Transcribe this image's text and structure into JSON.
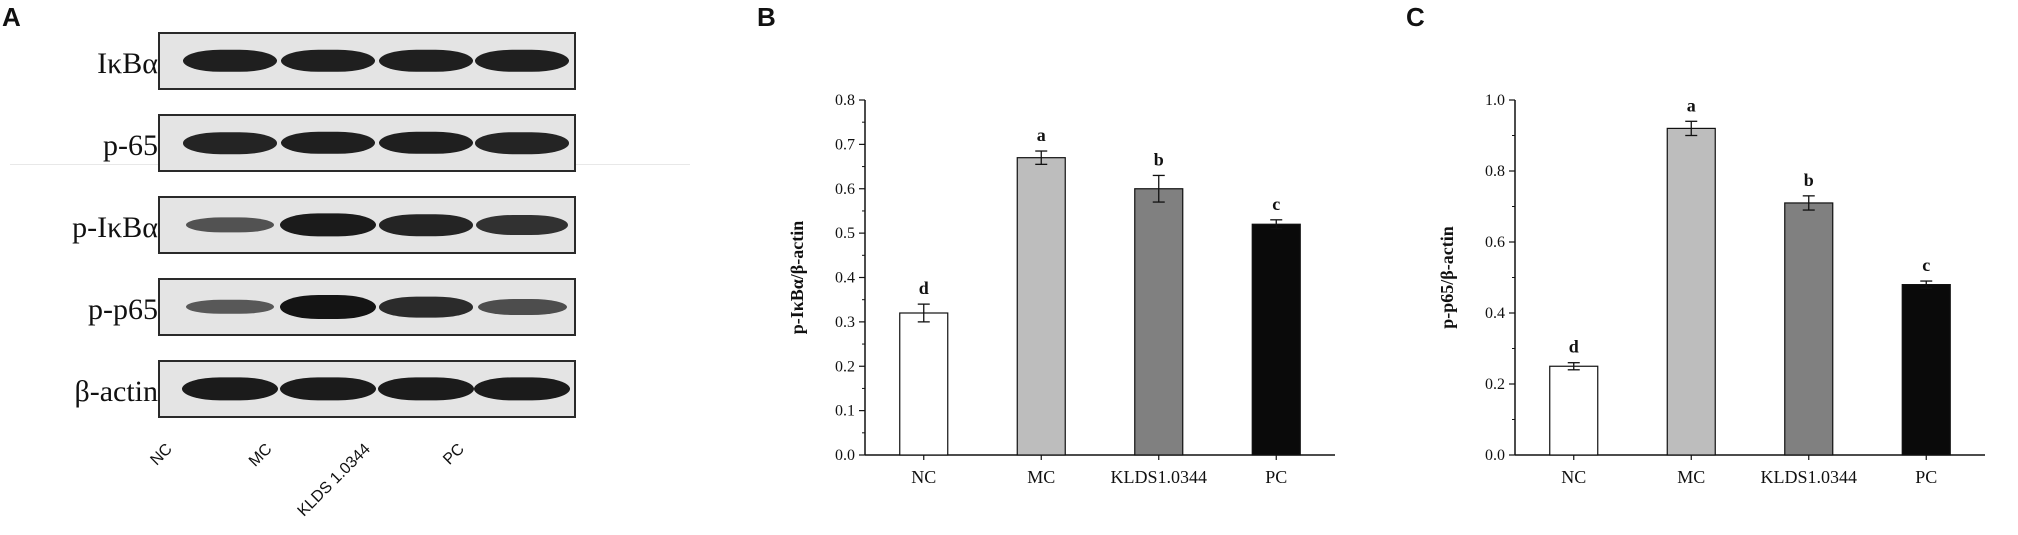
{
  "panels": {
    "a": "A",
    "b": "B",
    "c": "C"
  },
  "blot": {
    "rows": [
      {
        "label": "IκBα",
        "intensities": [
          0.9,
          0.9,
          0.9,
          0.9
        ]
      },
      {
        "label": "p-65",
        "intensities": [
          0.85,
          0.9,
          0.9,
          0.85
        ]
      },
      {
        "label": "p-IκBα",
        "intensities": [
          0.45,
          0.95,
          0.85,
          0.75
        ]
      },
      {
        "label": "p-p65",
        "intensities": [
          0.4,
          1.0,
          0.8,
          0.5
        ]
      },
      {
        "label": "β-actin",
        "intensities": [
          0.95,
          0.95,
          0.95,
          0.95
        ]
      }
    ],
    "lanes": [
      "NC",
      "MC",
      "KLDS 1.0344",
      "PC"
    ]
  },
  "chart_data": [
    {
      "type": "bar",
      "categories": [
        "NC",
        "MC",
        "KLDS1.0344",
        "PC"
      ],
      "values": [
        0.32,
        0.67,
        0.6,
        0.52
      ],
      "errors": [
        0.02,
        0.015,
        0.03,
        0.01
      ],
      "letters": [
        "d",
        "a",
        "b",
        "c"
      ],
      "colors": [
        "#ffffff",
        "#bdbdbd",
        "#808080",
        "#0a0a0a"
      ],
      "ylabel": "p-IκBα/β-actin",
      "ylim": [
        0,
        0.8
      ],
      "yticks": [
        "0.0",
        "0.1",
        "0.2",
        "0.3",
        "0.4",
        "0.5",
        "0.6",
        "0.7",
        "0.8"
      ]
    },
    {
      "type": "bar",
      "categories": [
        "NC",
        "MC",
        "KLDS1.0344",
        "PC"
      ],
      "values": [
        0.25,
        0.92,
        0.71,
        0.48
      ],
      "errors": [
        0.01,
        0.02,
        0.02,
        0.01
      ],
      "letters": [
        "d",
        "a",
        "b",
        "c"
      ],
      "colors": [
        "#ffffff",
        "#bdbdbd",
        "#808080",
        "#0a0a0a"
      ],
      "ylabel": "p-p65/β-actin",
      "ylim": [
        0,
        1.0
      ],
      "yticks": [
        "0.0",
        "0.2",
        "0.4",
        "0.6",
        "0.8",
        "1.0"
      ]
    }
  ]
}
